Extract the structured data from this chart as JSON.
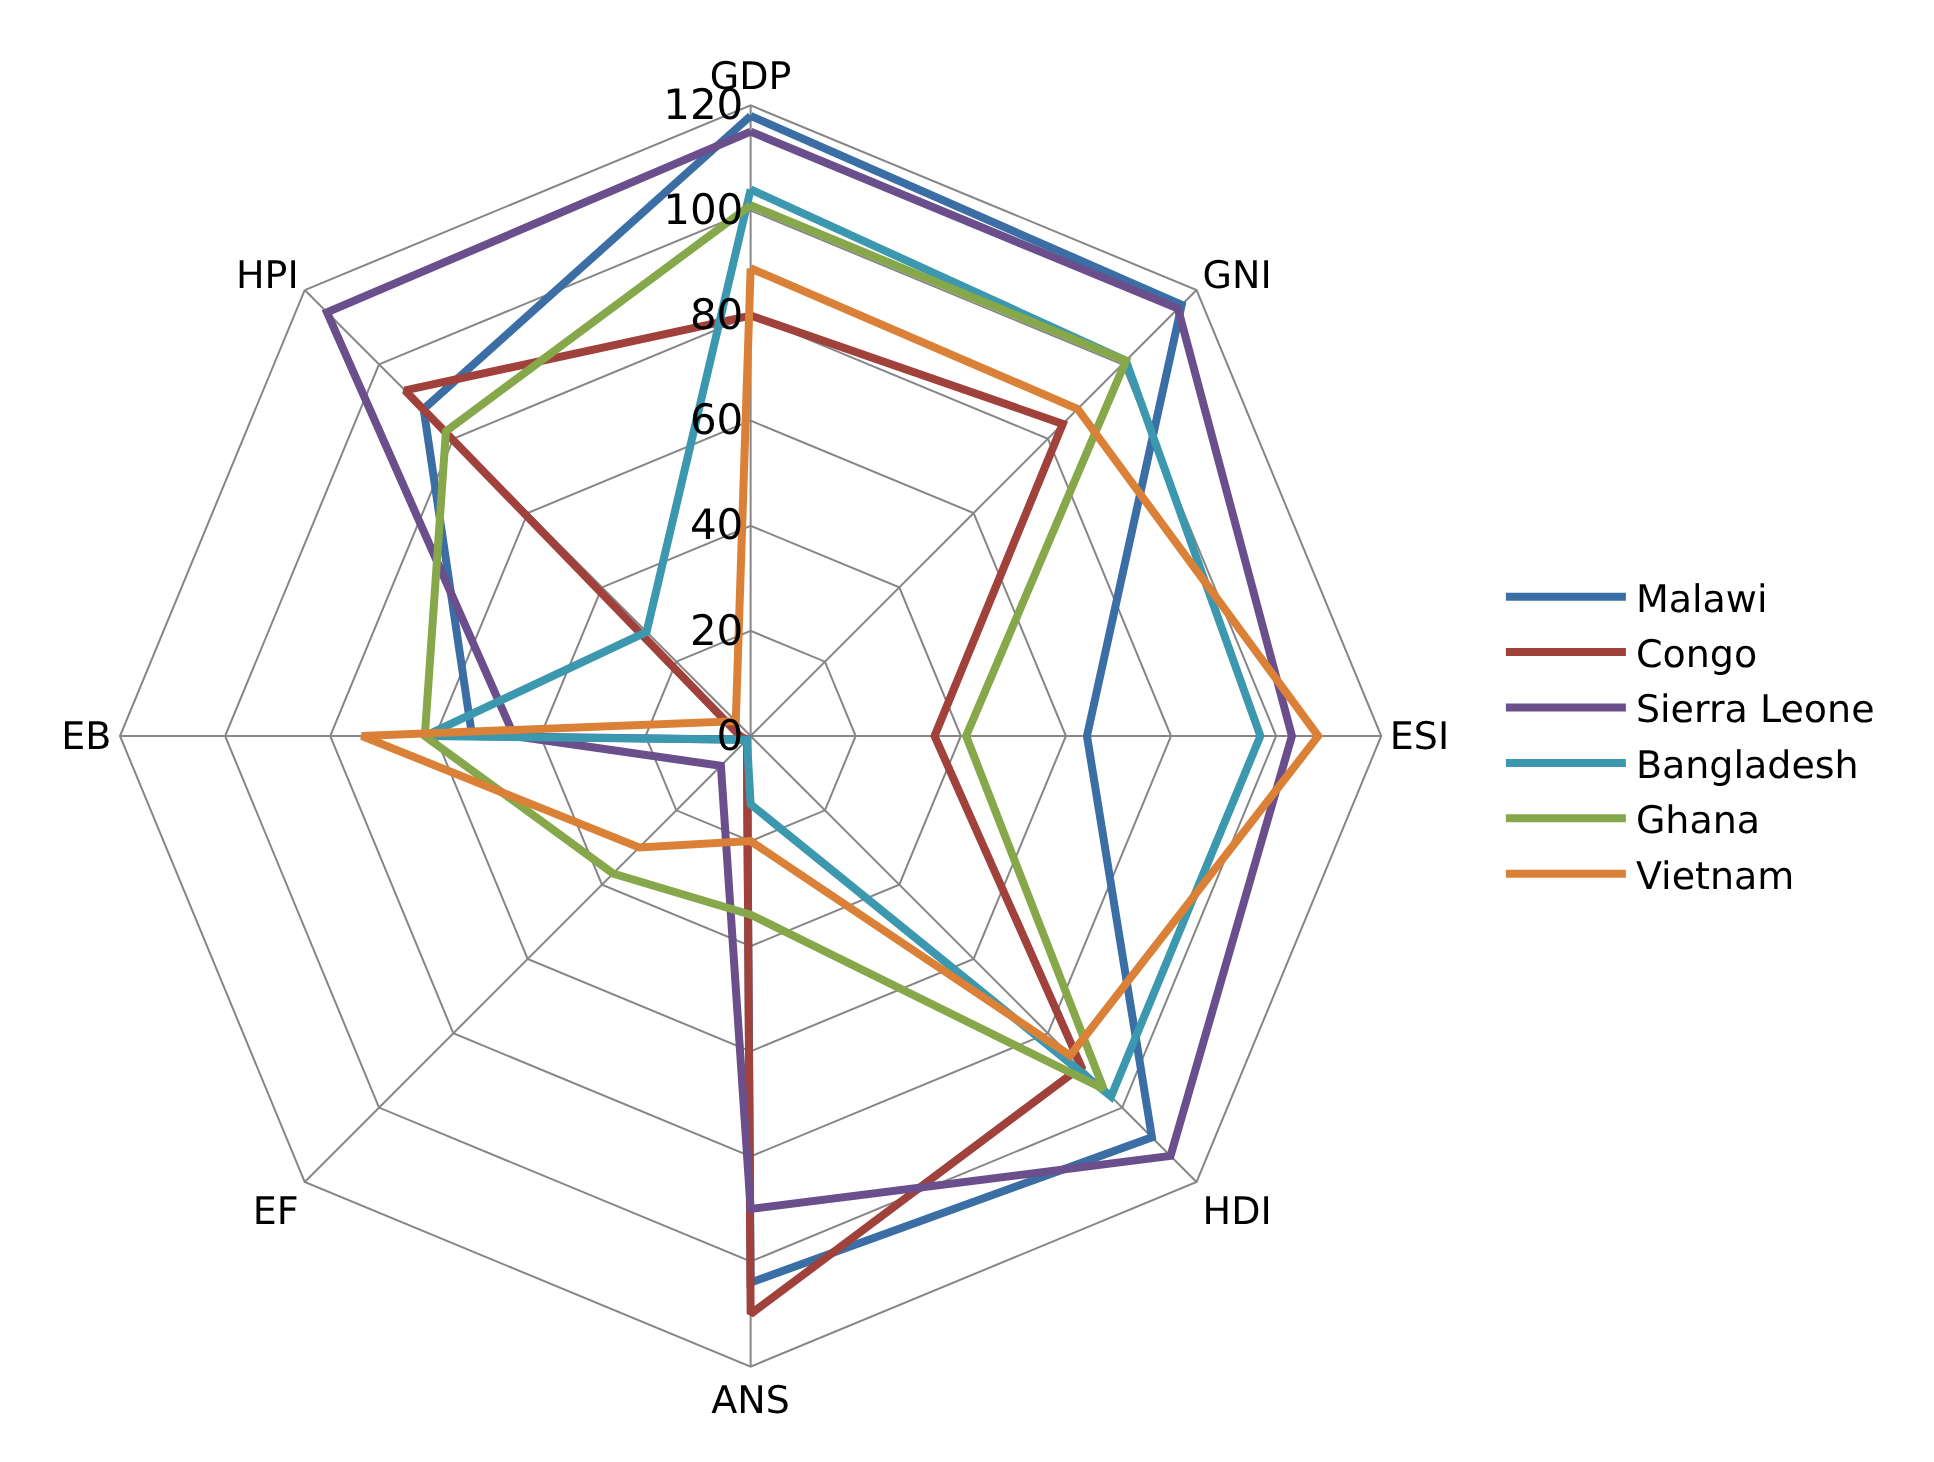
{
  "chart_data": {
    "type": "radar",
    "categories": [
      "GDP",
      "GNI",
      "ESI",
      "HDI",
      "ANS",
      "EF",
      "EB",
      "HPI"
    ],
    "series": [
      {
        "name": "Malawi",
        "color": "#3a6ea5",
        "values": [
          118,
          116,
          64,
          108,
          104,
          1,
          53,
          88
        ]
      },
      {
        "name": "Congo",
        "color": "#a0413c",
        "values": [
          80,
          84,
          35,
          89,
          110,
          1,
          2,
          93
        ]
      },
      {
        "name": "Sierra Leone",
        "color": "#6a4f8c",
        "values": [
          115,
          115,
          103,
          113,
          90,
          8,
          45,
          114
        ]
      },
      {
        "name": "Bangladesh",
        "color": "#3c98ae",
        "values": [
          104,
          101,
          97,
          97,
          13,
          1,
          62,
          28
        ]
      },
      {
        "name": "Ghana",
        "color": "#86a84a",
        "values": [
          101,
          101,
          41,
          95,
          34,
          37,
          62,
          82
        ]
      },
      {
        "name": "Vietnam",
        "color": "#da8137",
        "values": [
          89,
          88,
          108,
          86,
          20,
          30,
          74,
          4
        ]
      }
    ],
    "ylim": [
      0,
      120
    ],
    "yticks": [
      0,
      20,
      40,
      60,
      80,
      100,
      120
    ],
    "grid": true,
    "legend": "right",
    "marker": "none",
    "line_style": "solid"
  }
}
